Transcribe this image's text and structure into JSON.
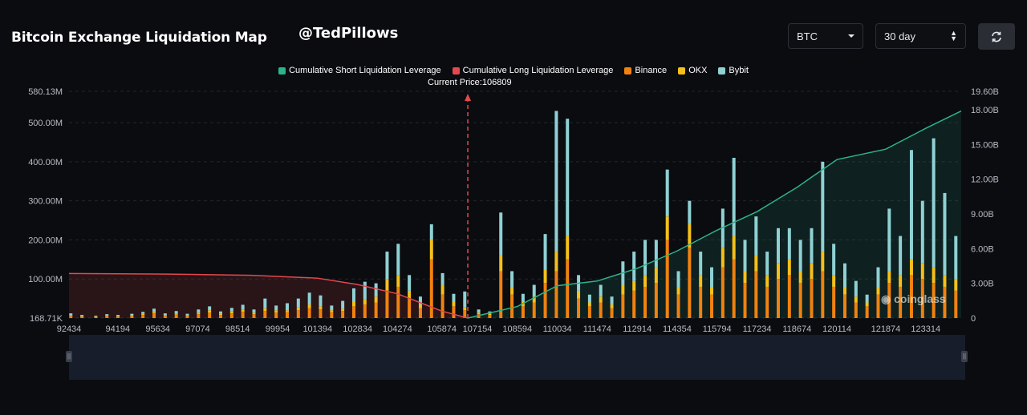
{
  "header": {
    "title": "Bitcoin Exchange Liquidation Map",
    "handle": "@TedPillows",
    "coin_select": "BTC",
    "range_select": "30 day"
  },
  "watermark": "coinglass",
  "colors": {
    "short_cum": "#2bb38a",
    "long_cum": "#e5484d",
    "binance": "#f0820f",
    "okx": "#f5c01a",
    "bybit": "#8fd1d4",
    "background": "#0b0c10"
  },
  "chart_data": {
    "type": "bar",
    "legend": [
      {
        "name": "Cumulative Short Liquidation Leverage",
        "color": "#2bb38a"
      },
      {
        "name": "Cumulative Long Liquidation Leverage",
        "color": "#e5484d"
      },
      {
        "name": "Binance",
        "color": "#f0820f"
      },
      {
        "name": "OKX",
        "color": "#f5c01a"
      },
      {
        "name": "Bybit",
        "color": "#8fd1d4"
      }
    ],
    "current_price_label": "Current Price:106809",
    "current_price": 106809,
    "x_range": [
      92434,
      124594
    ],
    "x_ticks": [
      92434,
      94194,
      95634,
      97074,
      98514,
      99954,
      101394,
      102834,
      104274,
      105874,
      107154,
      108594,
      110034,
      111474,
      112914,
      114354,
      115794,
      117234,
      118674,
      120114,
      121874,
      123314
    ],
    "y_left_ticks": [
      "580.13M",
      "500.00M",
      "400.00M",
      "300.00M",
      "200.00M",
      "100.00M",
      "168.71K"
    ],
    "y_left_values": [
      580.13,
      500,
      400,
      300,
      200,
      100,
      0.17
    ],
    "y_left_range": [
      0,
      580.13
    ],
    "y_right_ticks": [
      "19.60B",
      "18.00B",
      "15.00B",
      "12.00B",
      "9.00B",
      "6.00B",
      "3.00B",
      "0"
    ],
    "y_right_values": [
      19.6,
      18,
      15,
      12,
      9,
      6,
      3,
      0
    ],
    "y_right_range": [
      0,
      19.6
    ],
    "long_cumulative": {
      "unit": "B",
      "points": [
        [
          92434,
          3.85
        ],
        [
          96000,
          3.8
        ],
        [
          99000,
          3.7
        ],
        [
          101394,
          3.45
        ],
        [
          102834,
          2.9
        ],
        [
          104274,
          2.1
        ],
        [
          105874,
          0.6
        ],
        [
          106809,
          0.0
        ]
      ]
    },
    "short_cumulative": {
      "unit": "B",
      "points": [
        [
          106809,
          0.0
        ],
        [
          108594,
          1.0
        ],
        [
          110034,
          2.8
        ],
        [
          111474,
          3.2
        ],
        [
          112914,
          4.3
        ],
        [
          114354,
          5.8
        ],
        [
          115794,
          7.6
        ],
        [
          117234,
          9.2
        ],
        [
          118674,
          11.3
        ],
        [
          120114,
          13.7
        ],
        [
          121874,
          14.6
        ],
        [
          123314,
          16.4
        ],
        [
          124594,
          17.9
        ]
      ]
    },
    "bars": [
      {
        "price": 92500,
        "binance": 6,
        "okx": 2,
        "bybit": 4
      },
      {
        "price": 92900,
        "binance": 4,
        "okx": 1,
        "bybit": 3
      },
      {
        "price": 93400,
        "binance": 3,
        "okx": 1,
        "bybit": 2
      },
      {
        "price": 93800,
        "binance": 5,
        "okx": 2,
        "bybit": 3
      },
      {
        "price": 94200,
        "binance": 4,
        "okx": 1,
        "bybit": 3
      },
      {
        "price": 94700,
        "binance": 5,
        "okx": 2,
        "bybit": 4
      },
      {
        "price": 95100,
        "binance": 8,
        "okx": 3,
        "bybit": 5
      },
      {
        "price": 95500,
        "binance": 12,
        "okx": 4,
        "bybit": 8
      },
      {
        "price": 95900,
        "binance": 6,
        "okx": 2,
        "bybit": 4
      },
      {
        "price": 96300,
        "binance": 9,
        "okx": 3,
        "bybit": 6
      },
      {
        "price": 96700,
        "binance": 5,
        "okx": 2,
        "bybit": 4
      },
      {
        "price": 97100,
        "binance": 10,
        "okx": 4,
        "bybit": 8
      },
      {
        "price": 97500,
        "binance": 14,
        "okx": 6,
        "bybit": 10
      },
      {
        "price": 97900,
        "binance": 8,
        "okx": 3,
        "bybit": 6
      },
      {
        "price": 98300,
        "binance": 12,
        "okx": 5,
        "bybit": 9
      },
      {
        "price": 98700,
        "binance": 16,
        "okx": 6,
        "bybit": 12
      },
      {
        "price": 99100,
        "binance": 10,
        "okx": 4,
        "bybit": 8
      },
      {
        "price": 99500,
        "binance": 18,
        "okx": 7,
        "bybit": 25
      },
      {
        "price": 99900,
        "binance": 14,
        "okx": 6,
        "bybit": 12
      },
      {
        "price": 100300,
        "binance": 15,
        "okx": 5,
        "bybit": 18
      },
      {
        "price": 100700,
        "binance": 20,
        "okx": 8,
        "bybit": 22
      },
      {
        "price": 101100,
        "binance": 25,
        "okx": 10,
        "bybit": 30
      },
      {
        "price": 101500,
        "binance": 22,
        "okx": 8,
        "bybit": 28
      },
      {
        "price": 101900,
        "binance": 15,
        "okx": 5,
        "bybit": 12
      },
      {
        "price": 102300,
        "binance": 18,
        "okx": 6,
        "bybit": 20
      },
      {
        "price": 102700,
        "binance": 30,
        "okx": 12,
        "bybit": 34
      },
      {
        "price": 103100,
        "binance": 35,
        "okx": 14,
        "bybit": 44
      },
      {
        "price": 103500,
        "binance": 40,
        "okx": 15,
        "bybit": 34
      },
      {
        "price": 103900,
        "binance": 70,
        "okx": 30,
        "bybit": 70
      },
      {
        "price": 104300,
        "binance": 80,
        "okx": 30,
        "bybit": 80
      },
      {
        "price": 104700,
        "binance": 50,
        "okx": 20,
        "bybit": 40
      },
      {
        "price": 105100,
        "binance": 25,
        "okx": 10,
        "bybit": 20
      },
      {
        "price": 105500,
        "binance": 150,
        "okx": 50,
        "bybit": 40
      },
      {
        "price": 105900,
        "binance": 60,
        "okx": 25,
        "bybit": 30
      },
      {
        "price": 106300,
        "binance": 30,
        "okx": 12,
        "bybit": 20
      },
      {
        "price": 106700,
        "binance": 20,
        "okx": 8,
        "bybit": 40
      },
      {
        "price": 107200,
        "binance": 10,
        "okx": 4,
        "bybit": 8
      },
      {
        "price": 107600,
        "binance": 8,
        "okx": 3,
        "bybit": 6
      },
      {
        "price": 108000,
        "binance": 120,
        "okx": 40,
        "bybit": 110
      },
      {
        "price": 108400,
        "binance": 60,
        "okx": 20,
        "bybit": 40
      },
      {
        "price": 108800,
        "binance": 30,
        "okx": 12,
        "bybit": 20
      },
      {
        "price": 109200,
        "binance": 40,
        "okx": 15,
        "bybit": 30
      },
      {
        "price": 109600,
        "binance": 90,
        "okx": 35,
        "bybit": 90
      },
      {
        "price": 110000,
        "binance": 120,
        "okx": 50,
        "bybit": 360
      },
      {
        "price": 110400,
        "binance": 150,
        "okx": 60,
        "bybit": 300
      },
      {
        "price": 110800,
        "binance": 50,
        "okx": 20,
        "bybit": 40
      },
      {
        "price": 111200,
        "binance": 30,
        "okx": 10,
        "bybit": 20
      },
      {
        "price": 111600,
        "binance": 40,
        "okx": 15,
        "bybit": 30
      },
      {
        "price": 112000,
        "binance": 25,
        "okx": 10,
        "bybit": 20
      },
      {
        "price": 112400,
        "binance": 60,
        "okx": 25,
        "bybit": 60
      },
      {
        "price": 112800,
        "binance": 70,
        "okx": 25,
        "bybit": 75
      },
      {
        "price": 113200,
        "binance": 80,
        "okx": 30,
        "bybit": 90
      },
      {
        "price": 113600,
        "binance": 90,
        "okx": 40,
        "bybit": 70
      },
      {
        "price": 114000,
        "binance": 200,
        "okx": 60,
        "bybit": 120
      },
      {
        "price": 114400,
        "binance": 60,
        "okx": 20,
        "bybit": 40
      },
      {
        "price": 114800,
        "binance": 180,
        "okx": 60,
        "bybit": 60
      },
      {
        "price": 115200,
        "binance": 80,
        "okx": 30,
        "bybit": 60
      },
      {
        "price": 115600,
        "binance": 60,
        "okx": 20,
        "bybit": 50
      },
      {
        "price": 116000,
        "binance": 130,
        "okx": 50,
        "bybit": 100
      },
      {
        "price": 116400,
        "binance": 150,
        "okx": 60,
        "bybit": 200
      },
      {
        "price": 116800,
        "binance": 90,
        "okx": 30,
        "bybit": 80
      },
      {
        "price": 117200,
        "binance": 120,
        "okx": 40,
        "bybit": 100
      },
      {
        "price": 117600,
        "binance": 80,
        "okx": 30,
        "bybit": 60
      },
      {
        "price": 118000,
        "binance": 100,
        "okx": 40,
        "bybit": 90
      },
      {
        "price": 118400,
        "binance": 110,
        "okx": 40,
        "bybit": 80
      },
      {
        "price": 118800,
        "binance": 90,
        "okx": 30,
        "bybit": 80
      },
      {
        "price": 119200,
        "binance": 100,
        "okx": 40,
        "bybit": 90
      },
      {
        "price": 119600,
        "binance": 120,
        "okx": 50,
        "bybit": 230
      },
      {
        "price": 120000,
        "binance": 80,
        "okx": 30,
        "bybit": 80
      },
      {
        "price": 120400,
        "binance": 60,
        "okx": 20,
        "bybit": 60
      },
      {
        "price": 120800,
        "binance": 40,
        "okx": 15,
        "bybit": 40
      },
      {
        "price": 121200,
        "binance": 30,
        "okx": 10,
        "bybit": 20
      },
      {
        "price": 121600,
        "binance": 60,
        "okx": 20,
        "bybit": 50
      },
      {
        "price": 122000,
        "binance": 90,
        "okx": 30,
        "bybit": 160
      },
      {
        "price": 122400,
        "binance": 80,
        "okx": 30,
        "bybit": 100
      },
      {
        "price": 122800,
        "binance": 110,
        "okx": 40,
        "bybit": 280
      },
      {
        "price": 123200,
        "binance": 100,
        "okx": 40,
        "bybit": 160
      },
      {
        "price": 123600,
        "binance": 90,
        "okx": 40,
        "bybit": 330
      },
      {
        "price": 124000,
        "binance": 80,
        "okx": 30,
        "bybit": 210
      },
      {
        "price": 124400,
        "binance": 70,
        "okx": 30,
        "bybit": 110
      }
    ]
  }
}
